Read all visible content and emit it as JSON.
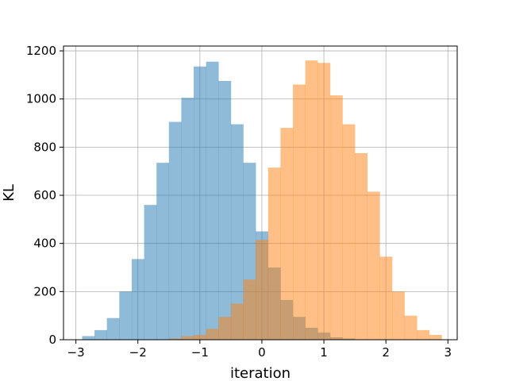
{
  "chart_data": {
    "type": "histogram",
    "title": "",
    "xlabel": "iteration",
    "ylabel": "KL",
    "xlim": [
      -3.2,
      3.15
    ],
    "ylim": [
      0,
      1220
    ],
    "xticks": [
      -3,
      -2,
      -1,
      0,
      1,
      2,
      3
    ],
    "xtick_labels": [
      "−3",
      "−2",
      "−1",
      "0",
      "1",
      "2",
      "3"
    ],
    "yticks": [
      0,
      200,
      400,
      600,
      800,
      1000,
      1200
    ],
    "ytick_labels": [
      "0",
      "200",
      "400",
      "600",
      "800",
      "1000",
      "1200"
    ],
    "grid": true,
    "legend": "none",
    "series": [
      {
        "color": "#1f77b4",
        "opacity": 0.5,
        "bin_edges": [
          -2.9,
          -2.7,
          -2.5,
          -2.3,
          -2.1,
          -1.9,
          -1.7,
          -1.5,
          -1.3,
          -1.1,
          -0.9,
          -0.7,
          -0.5,
          -0.3,
          -0.1,
          0.1,
          0.3,
          0.5,
          0.7,
          0.9,
          1.1,
          1.3,
          1.5
        ],
        "counts": [
          15,
          40,
          90,
          200,
          335,
          560,
          735,
          905,
          1005,
          1135,
          1155,
          1075,
          895,
          735,
          450,
          300,
          165,
          95,
          50,
          30,
          10,
          5
        ]
      },
      {
        "color": "#ff7f0e",
        "opacity": 0.5,
        "bin_edges": [
          -1.5,
          -1.3,
          -1.1,
          -0.9,
          -0.7,
          -0.5,
          -0.3,
          -0.1,
          0.1,
          0.3,
          0.5,
          0.7,
          0.9,
          1.1,
          1.3,
          1.5,
          1.7,
          1.9,
          2.1,
          2.3,
          2.5,
          2.7,
          2.9
        ],
        "counts": [
          5,
          15,
          20,
          45,
          95,
          150,
          250,
          415,
          715,
          880,
          1060,
          1160,
          1150,
          1015,
          895,
          775,
          615,
          345,
          200,
          100,
          40,
          20
        ]
      }
    ]
  }
}
